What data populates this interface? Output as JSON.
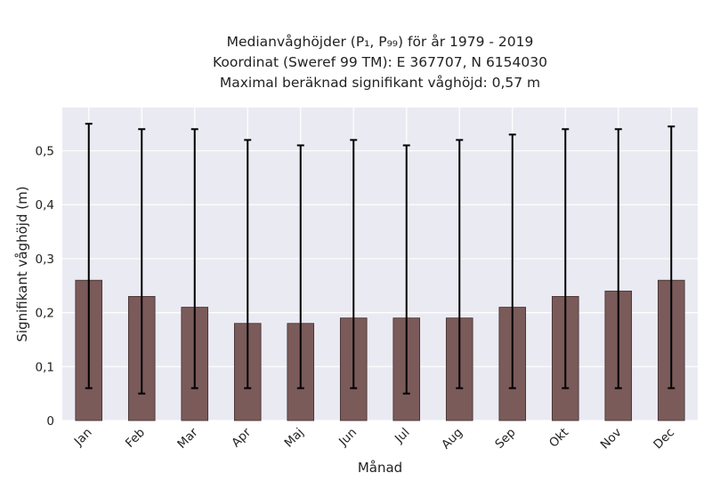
{
  "chart_data": {
    "type": "bar",
    "title_lines": [
      "Medianvåghöjder (P₁, P₉₉) för år 1979 - 2019",
      "Koordinat (Sweref 99 TM): E 367707, N 6154030",
      "Maximal beräknad signifikant våghöjd: 0,57 m"
    ],
    "xlabel": "Månad",
    "ylabel": "Signifikant våghöjd (m)",
    "categories": [
      "Jan",
      "Feb",
      "Mar",
      "Apr",
      "Maj",
      "Jun",
      "Jul",
      "Aug",
      "Sep",
      "Okt",
      "Nov",
      "Dec"
    ],
    "values": [
      0.26,
      0.23,
      0.21,
      0.18,
      0.18,
      0.19,
      0.19,
      0.19,
      0.21,
      0.23,
      0.24,
      0.26
    ],
    "err_low": [
      0.06,
      0.05,
      0.06,
      0.06,
      0.06,
      0.06,
      0.05,
      0.06,
      0.06,
      0.06,
      0.06,
      0.06
    ],
    "err_high": [
      0.55,
      0.54,
      0.54,
      0.52,
      0.51,
      0.52,
      0.51,
      0.52,
      0.53,
      0.54,
      0.54,
      0.545
    ],
    "yticks": [
      0,
      0.1,
      0.2,
      0.3,
      0.4,
      0.5
    ],
    "ytick_labels": [
      "0",
      "0,1",
      "0,2",
      "0,3",
      "0,4",
      "0,5"
    ],
    "ylim": [
      0,
      0.58
    ],
    "grid": true,
    "colors": {
      "bar": "#7b5a5a",
      "bar_edge": "#3f2e2e",
      "plot_bg": "#eaeaf2",
      "grid": "#ffffff",
      "error": "#000000"
    }
  }
}
